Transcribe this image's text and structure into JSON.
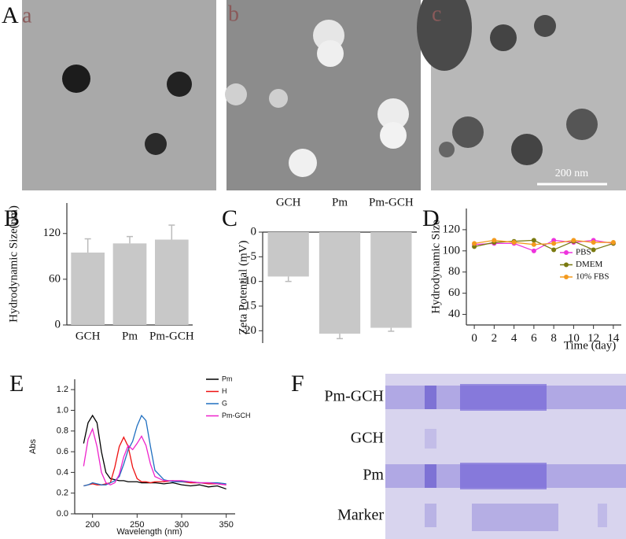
{
  "images": {
    "A": {
      "label": "A",
      "subpanels": [
        "a",
        "b",
        "c"
      ],
      "scale_bar": "200 nm"
    },
    "F": {
      "label": "F",
      "lanes": [
        "Pm-GCH",
        "GCH",
        "Pm",
        "Marker"
      ]
    }
  },
  "chart_data": [
    {
      "type": "bar",
      "label": "B",
      "ylabel": "Hydrodynamic Size(nm)",
      "categories": [
        "GCH",
        "Pm",
        "Pm-GCH"
      ],
      "values": [
        95,
        107,
        112
      ],
      "errors": [
        18,
        9,
        19
      ],
      "color": "#c8c8c8",
      "ylim": [
        0,
        160
      ],
      "yticks": [
        0,
        60,
        120
      ]
    },
    {
      "type": "bar",
      "label": "C",
      "ylabel": "Zeta Potential (mV)",
      "categories": [
        "GCH",
        "Pm",
        "Pm-GCH"
      ],
      "values": [
        -9,
        -20.6,
        -19.4
      ],
      "errors": [
        1,
        1,
        0.7
      ],
      "color": "#c8c8c8",
      "ylim": [
        -22.5,
        0
      ],
      "yticks": [
        0,
        -5,
        -10,
        -15,
        -20
      ]
    },
    {
      "type": "line",
      "label": "D",
      "ylabel": "Hydrodynamic Size",
      "xlabel": "Time (day)",
      "x": [
        0,
        2,
        4,
        6,
        8,
        10,
        12,
        14
      ],
      "markers": true,
      "legend": "center right",
      "series": [
        {
          "name": "PBS",
          "color": "#ee33dd",
          "values": [
            106,
            107,
            107,
            100,
            110,
            108,
            110,
            107
          ]
        },
        {
          "name": "DMEM",
          "color": "#7a7a10",
          "values": [
            104,
            108,
            109,
            110,
            101,
            109,
            101,
            107
          ]
        },
        {
          "name": "10% FBS",
          "color": "#f39a1e",
          "values": [
            107,
            110,
            108,
            106,
            107,
            110,
            108,
            108
          ]
        }
      ],
      "xlim": [
        -0.8,
        14.8
      ],
      "xticks": [
        0,
        2,
        4,
        6,
        8,
        10,
        12,
        14
      ],
      "ylim": [
        30,
        140
      ],
      "yticks": [
        40,
        60,
        80,
        100,
        120
      ]
    },
    {
      "type": "line",
      "label": "E",
      "ylabel": "Abs",
      "xlabel": "Wavelength (nm)",
      "x": [
        190,
        195,
        200,
        205,
        210,
        215,
        220,
        225,
        230,
        235,
        240,
        245,
        250,
        255,
        260,
        265,
        270,
        280,
        290,
        300,
        310,
        320,
        330,
        340,
        350
      ],
      "markers": false,
      "legend": "upper right",
      "series": [
        {
          "name": "Pm",
          "color": "#000000",
          "values": [
            0.68,
            0.88,
            0.95,
            0.88,
            0.6,
            0.4,
            0.34,
            0.33,
            0.32,
            0.32,
            0.31,
            0.31,
            0.31,
            0.3,
            0.3,
            0.3,
            0.3,
            0.29,
            0.3,
            0.28,
            0.27,
            0.28,
            0.26,
            0.27,
            0.24
          ]
        },
        {
          "name": "H",
          "color": "#ee1111",
          "values": [
            0.27,
            0.28,
            0.29,
            0.28,
            0.28,
            0.29,
            0.3,
            0.45,
            0.65,
            0.74,
            0.65,
            0.45,
            0.34,
            0.31,
            0.31,
            0.3,
            0.31,
            0.31,
            0.32,
            0.31,
            0.3,
            0.3,
            0.29,
            0.29,
            0.28
          ]
        },
        {
          "name": "G",
          "color": "#1f6fc0",
          "values": [
            0.27,
            0.28,
            0.3,
            0.29,
            0.28,
            0.28,
            0.3,
            0.32,
            0.36,
            0.48,
            0.62,
            0.7,
            0.85,
            0.95,
            0.9,
            0.65,
            0.42,
            0.33,
            0.31,
            0.31,
            0.31,
            0.3,
            0.3,
            0.3,
            0.29
          ]
        },
        {
          "name": "Pm-GCH",
          "color": "#ee22cc",
          "values": [
            0.46,
            0.72,
            0.82,
            0.65,
            0.4,
            0.3,
            0.28,
            0.3,
            0.38,
            0.55,
            0.66,
            0.62,
            0.68,
            0.75,
            0.66,
            0.48,
            0.36,
            0.32,
            0.32,
            0.32,
            0.31,
            0.3,
            0.3,
            0.29,
            0.28
          ]
        }
      ],
      "xlim": [
        180,
        360
      ],
      "xticks": [
        200,
        250,
        300,
        350
      ],
      "ylim": [
        0,
        1.3
      ],
      "yticks": [
        {
          "value": 0,
          "label": "0.0"
        },
        0.2,
        0.4,
        0.6,
        0.8,
        {
          "value": 1,
          "label": "1.0"
        },
        1.2
      ]
    }
  ]
}
